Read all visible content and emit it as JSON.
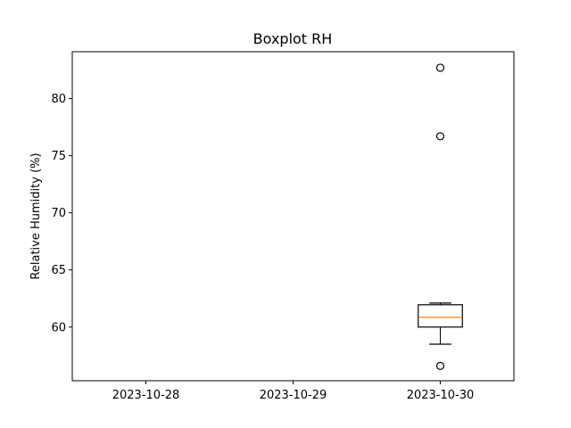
{
  "chart_data": {
    "type": "box",
    "title": "Boxplot RH",
    "xlabel": "",
    "ylabel": "Relative Humidity (%)",
    "categories": [
      "2023-10-28",
      "2023-10-29",
      "2023-10-30"
    ],
    "ylim": [
      55.3,
      84.1
    ],
    "yticks": [
      60,
      65,
      70,
      75,
      80
    ],
    "ytick_labels": [
      "60",
      "65",
      "70",
      "75",
      "80"
    ],
    "grid": false,
    "boxes": [
      {
        "category": "2023-10-28",
        "empty": true
      },
      {
        "category": "2023-10-29",
        "empty": true
      },
      {
        "category": "2023-10-30",
        "whisker_low": 58.5,
        "q1": 60.0,
        "median": 60.85,
        "q3": 61.95,
        "whisker_high": 62.1,
        "outliers": [
          56.6,
          76.7,
          82.7
        ]
      }
    ],
    "colors": {
      "box": "#000000",
      "median": "#ff7f0e",
      "outlier": "#000000"
    }
  }
}
